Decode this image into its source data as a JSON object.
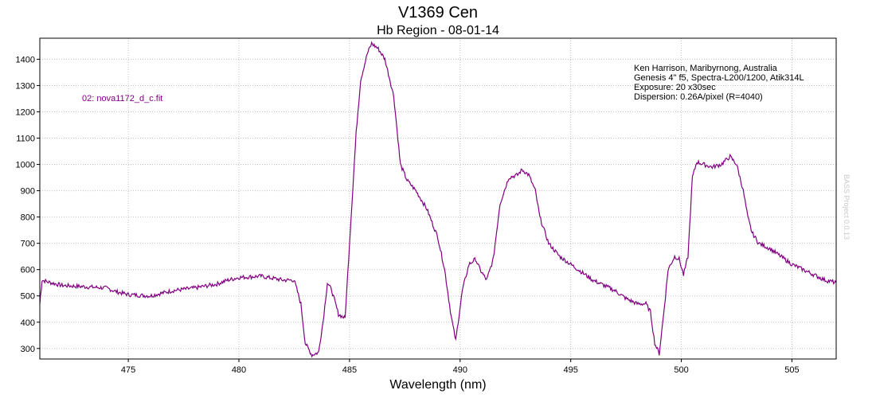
{
  "chart_data": {
    "type": "line",
    "title": "V1369 Cen",
    "subtitle": "Hb Region - 08-01-14",
    "xlabel": "Wavelength (nm)",
    "ylabel": "",
    "xlim": [
      471,
      507
    ],
    "ylim": [
      260,
      1480
    ],
    "x_ticks": [
      475,
      480,
      485,
      490,
      495,
      500,
      505
    ],
    "y_ticks": [
      300,
      400,
      500,
      600,
      700,
      800,
      900,
      1000,
      1100,
      1200,
      1300,
      1400
    ],
    "grid": true,
    "line_color": "#800080",
    "series": [
      {
        "name": "02: nova1172_d_c.fit",
        "x": [
          471.0,
          471.1,
          471.5,
          472.0,
          473.0,
          474.0,
          474.5,
          475.0,
          476.0,
          476.5,
          477.0,
          478.0,
          479.0,
          479.5,
          480.0,
          481.0,
          482.0,
          482.5,
          482.8,
          483.0,
          483.3,
          483.6,
          483.8,
          484.0,
          484.2,
          484.5,
          484.8,
          485.0,
          485.3,
          485.5,
          485.8,
          486.0,
          486.3,
          486.6,
          487.0,
          487.3,
          487.6,
          488.0,
          488.5,
          489.0,
          489.3,
          489.6,
          489.8,
          490.1,
          490.4,
          490.7,
          490.9,
          491.2,
          491.5,
          491.8,
          492.2,
          492.6,
          492.8,
          493.1,
          493.4,
          493.6,
          494.0,
          494.5,
          495.0,
          495.5,
          496.0,
          496.5,
          497.0,
          497.5,
          498.0,
          498.4,
          498.6,
          498.8,
          499.0,
          499.2,
          499.4,
          499.7,
          499.9,
          500.1,
          500.3,
          500.5,
          500.7,
          501.0,
          501.4,
          501.8,
          502.2,
          502.5,
          502.8,
          503.0,
          503.2,
          503.5,
          504.0,
          504.5,
          505.0,
          505.5,
          506.0,
          506.5,
          507.0
        ],
        "values": [
          470,
          560,
          550,
          540,
          535,
          530,
          515,
          505,
          500,
          510,
          520,
          530,
          545,
          560,
          570,
          575,
          560,
          560,
          470,
          320,
          275,
          285,
          400,
          550,
          520,
          430,
          415,
          700,
          1120,
          1320,
          1420,
          1460,
          1440,
          1400,
          1260,
          1000,
          940,
          900,
          830,
          720,
          600,
          420,
          330,
          520,
          620,
          640,
          600,
          560,
          640,
          850,
          950,
          960,
          980,
          960,
          900,
          800,
          700,
          650,
          620,
          590,
          560,
          540,
          520,
          490,
          470,
          470,
          440,
          320,
          280,
          430,
          600,
          650,
          640,
          580,
          650,
          950,
          1010,
          1000,
          990,
          1000,
          1030,
          1000,
          900,
          800,
          740,
          700,
          680,
          650,
          620,
          600,
          580,
          560,
          550
        ]
      }
    ]
  },
  "annotations": {
    "file_label": "02: nova1172_d_c.fit",
    "observer_lines": [
      "Ken Harrison, Maribyrnong, Australia",
      "Genesis 4\" f5, Spectra-L200/1200, Atik314L",
      "Exposure: 20 x30sec",
      "Dispersion: 0.26A/pixel (R=4040)"
    ],
    "watermark": "BASS Project 0.0.13"
  }
}
